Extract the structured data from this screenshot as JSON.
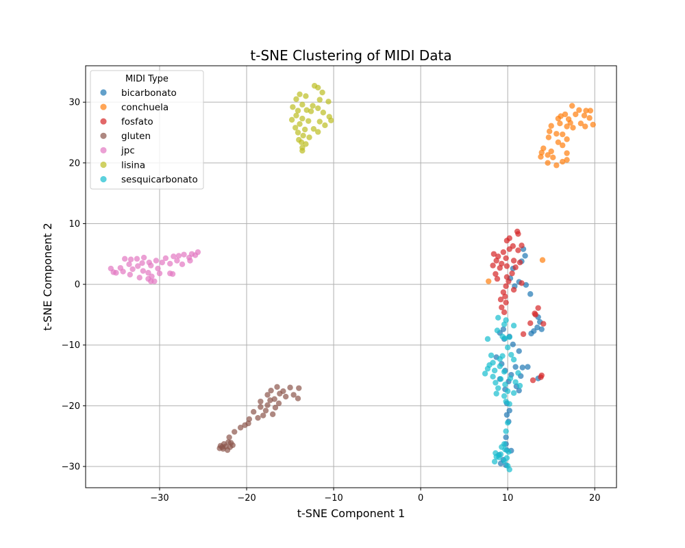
{
  "chart_data": {
    "type": "scatter",
    "title": "t-SNE Clustering of MIDI Data",
    "xlabel": "t-SNE Component 1",
    "ylabel": "t-SNE Component 2",
    "xlim": [
      -38.5,
      22.5
    ],
    "ylim": [
      -33.5,
      36
    ],
    "xticks": [
      -30,
      -20,
      -10,
      0,
      10,
      20
    ],
    "yticks": [
      -30,
      -20,
      -10,
      0,
      10,
      20,
      30
    ],
    "grid": true,
    "legend": {
      "title": "MIDI Type",
      "position": "top-left"
    },
    "series": [
      {
        "name": "bicarbonato",
        "color": "#1f77b4",
        "points": [
          [
            11.8,
            5.8
          ],
          [
            12.0,
            4.7
          ],
          [
            11.6,
            3.8
          ],
          [
            10.6,
            2.6
          ],
          [
            10.3,
            1.0
          ],
          [
            11.3,
            0.4
          ],
          [
            12.1,
            -0.1
          ],
          [
            10.8,
            -0.3
          ],
          [
            12.6,
            -1.6
          ],
          [
            13.5,
            -5.4
          ],
          [
            13.7,
            -6.2
          ],
          [
            13.4,
            -7.1
          ],
          [
            13.0,
            -7.7
          ],
          [
            12.7,
            -8.1
          ],
          [
            13.9,
            -7.4
          ],
          [
            9.5,
            -7.4
          ],
          [
            9.1,
            -8.0
          ],
          [
            10.2,
            -8.6
          ],
          [
            9.6,
            -9.0
          ],
          [
            10.6,
            -9.9
          ],
          [
            11.3,
            -11.0
          ],
          [
            8.7,
            -12.0
          ],
          [
            9.3,
            -13.1
          ],
          [
            10.9,
            -13.6
          ],
          [
            11.7,
            -13.7
          ],
          [
            12.3,
            -13.6
          ],
          [
            9.7,
            -14.2
          ],
          [
            10.4,
            -14.9
          ],
          [
            11.5,
            -15.1
          ],
          [
            9.1,
            -15.6
          ],
          [
            10.1,
            -16.0
          ],
          [
            11.0,
            -16.8
          ],
          [
            9.7,
            -17.3
          ],
          [
            11.3,
            -17.5
          ],
          [
            13.5,
            -15.5
          ],
          [
            9.9,
            -19.6
          ],
          [
            10.2,
            -20.8
          ],
          [
            9.9,
            -21.5
          ],
          [
            10.1,
            -22.6
          ],
          [
            9.8,
            -25.2
          ],
          [
            9.8,
            -26.3
          ],
          [
            9.9,
            -27.3
          ],
          [
            10.4,
            -27.4
          ],
          [
            9.0,
            -28.1
          ],
          [
            9.5,
            -28.9
          ],
          [
            9.2,
            -29.5
          ],
          [
            9.8,
            -29.8
          ]
        ]
      },
      {
        "name": "conchuela",
        "color": "#ff7f0e",
        "points": [
          [
            17.4,
            29.4
          ],
          [
            18.2,
            28.7
          ],
          [
            19.0,
            28.6
          ],
          [
            19.5,
            28.6
          ],
          [
            16.6,
            28.0
          ],
          [
            17.8,
            28.0
          ],
          [
            18.8,
            27.8
          ],
          [
            16.1,
            27.7
          ],
          [
            15.8,
            27.3
          ],
          [
            17.0,
            27.2
          ],
          [
            19.4,
            27.4
          ],
          [
            17.2,
            26.6
          ],
          [
            16.0,
            26.5
          ],
          [
            18.4,
            26.5
          ],
          [
            19.8,
            26.3
          ],
          [
            16.8,
            26.0
          ],
          [
            15.0,
            26.1
          ],
          [
            17.5,
            25.8
          ],
          [
            18.9,
            26.0
          ],
          [
            14.8,
            25.2
          ],
          [
            15.6,
            24.8
          ],
          [
            16.3,
            24.7
          ],
          [
            16.8,
            23.9
          ],
          [
            14.7,
            24.2
          ],
          [
            15.8,
            23.4
          ],
          [
            16.3,
            22.9
          ],
          [
            14.1,
            22.4
          ],
          [
            13.9,
            21.7
          ],
          [
            15.0,
            21.9
          ],
          [
            16.8,
            21.6
          ],
          [
            14.6,
            21.3
          ],
          [
            15.2,
            20.9
          ],
          [
            13.8,
            21.0
          ],
          [
            16.3,
            20.2
          ],
          [
            14.6,
            20.0
          ],
          [
            15.6,
            19.6
          ],
          [
            16.8,
            20.5
          ],
          [
            7.8,
            0.5
          ],
          [
            14.0,
            4.0
          ]
        ]
      },
      {
        "name": "fosfato",
        "color": "#d62728",
        "points": [
          [
            11.1,
            8.7
          ],
          [
            11.2,
            8.3
          ],
          [
            9.9,
            7.2
          ],
          [
            10.2,
            7.6
          ],
          [
            10.6,
            6.3
          ],
          [
            11.6,
            6.4
          ],
          [
            11.2,
            5.6
          ],
          [
            8.4,
            5.0
          ],
          [
            9.5,
            5.3
          ],
          [
            10.2,
            5.8
          ],
          [
            8.9,
            4.6
          ],
          [
            9.8,
            4.3
          ],
          [
            10.7,
            3.9
          ],
          [
            11.4,
            3.6
          ],
          [
            8.7,
            3.9
          ],
          [
            9.3,
            3.4
          ],
          [
            8.3,
            3.1
          ],
          [
            9.9,
            3.0
          ],
          [
            10.9,
            2.8
          ],
          [
            9.1,
            2.7
          ],
          [
            10.5,
            1.8
          ],
          [
            8.6,
            1.7
          ],
          [
            9.9,
            1.2
          ],
          [
            8.8,
            0.9
          ],
          [
            10.1,
            0.5
          ],
          [
            11.6,
            0.2
          ],
          [
            9.8,
            -0.3
          ],
          [
            9.5,
            -1.3
          ],
          [
            10.7,
            -0.9
          ],
          [
            9.7,
            -2.0
          ],
          [
            9.2,
            -2.5
          ],
          [
            9.8,
            -3.0
          ],
          [
            9.3,
            -3.8
          ],
          [
            9.6,
            -4.6
          ],
          [
            12.6,
            -6.4
          ],
          [
            13.1,
            -4.8
          ],
          [
            13.5,
            -3.9
          ],
          [
            13.2,
            -5.0
          ],
          [
            14.1,
            -6.5
          ],
          [
            11.8,
            -8.2
          ],
          [
            12.9,
            -15.8
          ],
          [
            13.9,
            -15.0
          ],
          [
            13.8,
            -15.3
          ]
        ]
      },
      {
        "name": "gluten",
        "color": "#8c564b",
        "points": [
          [
            -16.5,
            -16.9
          ],
          [
            -15.0,
            -17.0
          ],
          [
            -14.0,
            -17.1
          ],
          [
            -17.2,
            -17.5
          ],
          [
            -15.8,
            -17.6
          ],
          [
            -16.2,
            -18.0
          ],
          [
            -17.6,
            -18.2
          ],
          [
            -14.6,
            -18.2
          ],
          [
            -16.8,
            -18.9
          ],
          [
            -15.5,
            -18.5
          ],
          [
            -17.3,
            -19.1
          ],
          [
            -18.4,
            -19.3
          ],
          [
            -16.3,
            -19.6
          ],
          [
            -17.6,
            -19.9
          ],
          [
            -18.4,
            -20.2
          ],
          [
            -16.7,
            -20.3
          ],
          [
            -17.8,
            -20.8
          ],
          [
            -19.2,
            -21.0
          ],
          [
            -18.1,
            -21.6
          ],
          [
            -17.0,
            -21.4
          ],
          [
            -18.7,
            -22.0
          ],
          [
            -19.7,
            -22.2
          ],
          [
            -19.8,
            -22.9
          ],
          [
            -20.2,
            -23.2
          ],
          [
            -20.7,
            -23.6
          ],
          [
            -21.4,
            -24.3
          ],
          [
            -22.0,
            -25.2
          ],
          [
            -14.1,
            -18.8
          ],
          [
            -22.1,
            -26.0
          ],
          [
            -22.6,
            -26.3
          ],
          [
            -21.8,
            -26.1
          ],
          [
            -22.4,
            -26.7
          ],
          [
            -23.0,
            -26.6
          ],
          [
            -21.9,
            -26.8
          ],
          [
            -22.7,
            -27.1
          ],
          [
            -23.1,
            -27.0
          ],
          [
            -22.2,
            -27.3
          ],
          [
            -22.8,
            -26.8
          ],
          [
            -21.6,
            -26.5
          ]
        ]
      },
      {
        "name": "jpc",
        "color": "#e377c2",
        "points": [
          [
            -25.6,
            5.3
          ],
          [
            -26.3,
            5.0
          ],
          [
            -25.9,
            4.8
          ],
          [
            -27.2,
            4.9
          ],
          [
            -27.8,
            4.7
          ],
          [
            -28.4,
            4.6
          ],
          [
            -26.6,
            4.4
          ],
          [
            -29.3,
            4.3
          ],
          [
            -31.8,
            4.4
          ],
          [
            -32.6,
            4.2
          ],
          [
            -33.3,
            4.1
          ],
          [
            -34.0,
            4.2
          ],
          [
            -30.4,
            3.9
          ],
          [
            -28.0,
            3.9
          ],
          [
            -26.5,
            3.9
          ],
          [
            -31.2,
            3.6
          ],
          [
            -29.7,
            3.6
          ],
          [
            -32.0,
            3.5
          ],
          [
            -33.5,
            3.3
          ],
          [
            -28.8,
            3.4
          ],
          [
            -27.4,
            3.3
          ],
          [
            -31.0,
            3.1
          ],
          [
            -32.5,
            3.0
          ],
          [
            -34.5,
            2.7
          ],
          [
            -30.2,
            2.6
          ],
          [
            -33.1,
            2.5
          ],
          [
            -35.6,
            2.6
          ],
          [
            -31.9,
            2.2
          ],
          [
            -34.2,
            2.1
          ],
          [
            -35.0,
            1.9
          ],
          [
            -31.3,
            1.9
          ],
          [
            -30.0,
            1.8
          ],
          [
            -33.4,
            1.6
          ],
          [
            -28.8,
            1.8
          ],
          [
            -28.5,
            1.7
          ],
          [
            -30.9,
            1.3
          ],
          [
            -32.3,
            1.1
          ],
          [
            -31.3,
            0.9
          ],
          [
            -31.0,
            0.5
          ],
          [
            -30.6,
            0.5
          ],
          [
            -35.3,
            2.0
          ]
        ]
      },
      {
        "name": "lisina",
        "color": "#bcbd22",
        "points": [
          [
            -12.2,
            32.7
          ],
          [
            -11.8,
            32.4
          ],
          [
            -13.9,
            31.3
          ],
          [
            -11.3,
            31.6
          ],
          [
            -13.2,
            31.0
          ],
          [
            -14.3,
            30.5
          ],
          [
            -11.6,
            30.4
          ],
          [
            -10.6,
            30.1
          ],
          [
            -13.6,
            29.6
          ],
          [
            -12.4,
            29.4
          ],
          [
            -14.7,
            29.2
          ],
          [
            -11.8,
            29.0
          ],
          [
            -13.1,
            28.7
          ],
          [
            -14.1,
            28.6
          ],
          [
            -12.6,
            28.5
          ],
          [
            -11.2,
            28.3
          ],
          [
            -14.3,
            27.8
          ],
          [
            -10.5,
            27.6
          ],
          [
            -13.6,
            27.3
          ],
          [
            -14.8,
            27.1
          ],
          [
            -11.6,
            26.8
          ],
          [
            -12.9,
            26.9
          ],
          [
            -10.3,
            27.0
          ],
          [
            -13.9,
            26.4
          ],
          [
            -11.0,
            26.2
          ],
          [
            -14.4,
            25.8
          ],
          [
            -12.3,
            25.6
          ],
          [
            -13.3,
            25.5
          ],
          [
            -14.1,
            25.0
          ],
          [
            -11.8,
            25.1
          ],
          [
            -13.5,
            24.5
          ],
          [
            -12.8,
            24.2
          ],
          [
            -14.0,
            23.8
          ],
          [
            -13.7,
            23.4
          ],
          [
            -13.2,
            23.1
          ],
          [
            -13.6,
            22.5
          ],
          [
            -13.6,
            22.0
          ]
        ]
      },
      {
        "name": "sesquicarbonato",
        "color": "#17becf",
        "points": [
          [
            9.8,
            -5.9
          ],
          [
            8.9,
            -5.5
          ],
          [
            9.6,
            -6.6
          ],
          [
            10.7,
            -6.8
          ],
          [
            8.8,
            -7.6
          ],
          [
            9.4,
            -8.6
          ],
          [
            10.2,
            -8.7
          ],
          [
            9.7,
            -8.9
          ],
          [
            7.7,
            -9.0
          ],
          [
            10.0,
            -10.4
          ],
          [
            10.4,
            -11.6
          ],
          [
            9.4,
            -11.8
          ],
          [
            8.1,
            -11.7
          ],
          [
            9.1,
            -12.3
          ],
          [
            10.7,
            -12.4
          ],
          [
            8.3,
            -12.9
          ],
          [
            7.9,
            -13.3
          ],
          [
            9.1,
            -13.5
          ],
          [
            7.7,
            -13.9
          ],
          [
            8.5,
            -14.2
          ],
          [
            9.6,
            -14.4
          ],
          [
            11.2,
            -14.6
          ],
          [
            7.4,
            -14.7
          ],
          [
            8.3,
            -15.2
          ],
          [
            9.2,
            -15.6
          ],
          [
            10.3,
            -15.5
          ],
          [
            10.9,
            -16.1
          ],
          [
            8.6,
            -16.2
          ],
          [
            9.7,
            -16.5
          ],
          [
            11.4,
            -16.7
          ],
          [
            8.9,
            -17.1
          ],
          [
            10.0,
            -17.6
          ],
          [
            10.7,
            -17.9
          ],
          [
            8.7,
            -18.0
          ],
          [
            9.6,
            -18.4
          ],
          [
            9.8,
            -19.3
          ],
          [
            10.2,
            -19.7
          ],
          [
            10.0,
            -22.8
          ],
          [
            9.8,
            -24.2
          ],
          [
            9.6,
            -26.3
          ],
          [
            9.3,
            -26.8
          ],
          [
            9.7,
            -27.2
          ],
          [
            10.1,
            -27.6
          ],
          [
            8.6,
            -27.8
          ],
          [
            9.2,
            -28.0
          ],
          [
            9.9,
            -28.6
          ],
          [
            8.5,
            -29.2
          ],
          [
            9.6,
            -29.1
          ],
          [
            10.0,
            -29.9
          ],
          [
            10.2,
            -30.5
          ],
          [
            9.0,
            -28.5
          ],
          [
            8.7,
            -28.4
          ]
        ]
      }
    ]
  }
}
